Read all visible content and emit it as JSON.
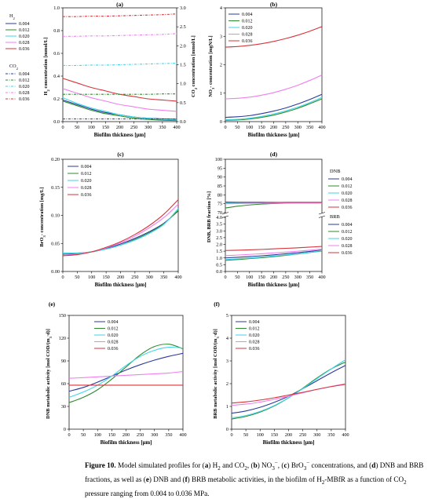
{
  "caption": {
    "fig_label": "Figure 10.",
    "segments": [
      {
        "t": "Model simulated profiles for (",
        "b": false
      },
      {
        "t": "a",
        "b": true
      },
      {
        "t": ") H",
        "b": false
      },
      {
        "t": "2",
        "b": false,
        "sub": true
      },
      {
        "t": " and CO",
        "b": false
      },
      {
        "t": "2",
        "b": false,
        "sub": true
      },
      {
        "t": ", (",
        "b": false
      },
      {
        "t": "b",
        "b": true
      },
      {
        "t": ") NO",
        "b": false
      },
      {
        "t": "3",
        "b": false,
        "sub": true
      },
      {
        "t": "−",
        "b": false,
        "sup": true
      },
      {
        "t": ", (",
        "b": false
      },
      {
        "t": "c",
        "b": true
      },
      {
        "t": ") BrO",
        "b": false
      },
      {
        "t": "3",
        "b": false,
        "sub": true
      },
      {
        "t": "−",
        "b": false,
        "sup": true
      },
      {
        "t": " concentrations, and (",
        "b": false
      },
      {
        "t": "d",
        "b": true
      },
      {
        "t": ") DNB and BRB fractions, as well as (",
        "b": false
      },
      {
        "t": "e",
        "b": true
      },
      {
        "t": ") DNB and (",
        "b": false
      },
      {
        "t": "f",
        "b": true
      },
      {
        "t": ") BRB metabolic activities, in the biofilm of H",
        "b": false
      },
      {
        "t": "2",
        "b": false,
        "sub": true
      },
      {
        "t": "-MBfR as a function of CO",
        "b": false
      },
      {
        "t": "2",
        "b": false,
        "sub": true
      },
      {
        "t": " pressure ranging from 0.004 to 0.036 MPa.",
        "b": false
      }
    ]
  },
  "colors": {
    "0.004": "#2b3a9c",
    "0.012": "#2e8b2e",
    "0.020": "#3fd6e6",
    "0.028": "#f07ef0",
    "0.036": "#d6343a"
  },
  "chart_data": [
    {
      "id": "a",
      "panel_label": "(a)",
      "type": "line",
      "xlabel": "Biofilm thickness [μm]",
      "ylabel": "H2 concentration [mmol/L]",
      "ylabel_right": "CO2 concentration [mmol/L]",
      "xlim": [
        0,
        400
      ],
      "ylim": [
        0,
        1.0
      ],
      "ylim_right": [
        0,
        3.0
      ],
      "x_ticks": [
        0,
        50,
        100,
        150,
        200,
        250,
        300,
        350,
        400
      ],
      "y_ticks": [
        "0.0",
        "0.2",
        "0.4",
        "0.6",
        "0.8",
        "1.0"
      ],
      "y_ticks_right": [
        "0.0",
        "0.5",
        "1.0",
        "1.5",
        "2.0",
        "2.5",
        "3.0"
      ],
      "legend_groups": [
        {
          "title": "H2",
          "style": "solid"
        },
        {
          "title": "CO2",
          "style": "dashdot"
        }
      ],
      "legend_labels": [
        "0.004",
        "0.012",
        "0.020",
        "0.028",
        "0.036"
      ],
      "x": [
        0,
        50,
        100,
        150,
        200,
        250,
        300,
        350,
        400
      ],
      "series": [
        {
          "name": "H2 0.004",
          "key": "0.004",
          "axis": "left",
          "style": "solid",
          "values": [
            0.19,
            0.15,
            0.11,
            0.08,
            0.06,
            0.04,
            0.03,
            0.025,
            0.02
          ]
        },
        {
          "name": "H2 0.012",
          "key": "0.012",
          "axis": "left",
          "style": "solid",
          "values": [
            0.18,
            0.14,
            0.1,
            0.07,
            0.05,
            0.03,
            0.02,
            0.012,
            0.01
          ]
        },
        {
          "name": "H2 0.020",
          "key": "0.020",
          "axis": "left",
          "style": "solid",
          "values": [
            0.21,
            0.16,
            0.12,
            0.09,
            0.06,
            0.04,
            0.03,
            0.02,
            0.015
          ]
        },
        {
          "name": "H2 0.028",
          "key": "0.028",
          "axis": "left",
          "style": "solid",
          "values": [
            0.29,
            0.25,
            0.21,
            0.18,
            0.15,
            0.13,
            0.11,
            0.1,
            0.09
          ]
        },
        {
          "name": "H2 0.036",
          "key": "0.036",
          "axis": "left",
          "style": "solid",
          "values": [
            0.38,
            0.34,
            0.3,
            0.27,
            0.24,
            0.22,
            0.2,
            0.19,
            0.18
          ]
        },
        {
          "name": "CO2 0.004",
          "key": "0.004",
          "axis": "right",
          "style": "dashdot",
          "values": [
            0.07,
            0.07,
            0.07,
            0.07,
            0.07,
            0.07,
            0.07,
            0.07,
            0.07
          ]
        },
        {
          "name": "CO2 0.012",
          "key": "0.012",
          "axis": "right",
          "style": "dashdot",
          "values": [
            0.72,
            0.72,
            0.72,
            0.72,
            0.72,
            0.72,
            0.72,
            0.73,
            0.73
          ]
        },
        {
          "name": "CO2 0.020",
          "key": "0.020",
          "axis": "right",
          "style": "dashdot",
          "values": [
            1.48,
            1.48,
            1.49,
            1.49,
            1.5,
            1.51,
            1.52,
            1.53,
            1.54
          ]
        },
        {
          "name": "CO2 0.028",
          "key": "0.028",
          "axis": "right",
          "style": "dashdot",
          "values": [
            2.25,
            2.25,
            2.26,
            2.26,
            2.27,
            2.28,
            2.29,
            2.3,
            2.32
          ]
        },
        {
          "name": "CO2 0.036",
          "key": "0.036",
          "axis": "right",
          "style": "dashdot",
          "values": [
            2.77,
            2.77,
            2.78,
            2.78,
            2.79,
            2.8,
            2.81,
            2.82,
            2.84
          ]
        }
      ]
    },
    {
      "id": "b",
      "panel_label": "(b)",
      "type": "line",
      "xlabel": "Biofilm thickness [μm]",
      "ylabel": "NO3- concentration [mgN/L]",
      "xlim": [
        0,
        400
      ],
      "ylim": [
        0,
        4
      ],
      "x_ticks": [
        0,
        50,
        100,
        150,
        200,
        250,
        300,
        350,
        400
      ],
      "y_ticks": [
        "0",
        "1",
        "2",
        "3",
        "4"
      ],
      "legend_labels": [
        "0.004",
        "0.012",
        "0.020",
        "0.028",
        "0.036"
      ],
      "x": [
        0,
        50,
        100,
        150,
        200,
        250,
        300,
        350,
        400
      ],
      "series": [
        {
          "key": "0.004",
          "values": [
            0.15,
            0.17,
            0.21,
            0.28,
            0.37,
            0.48,
            0.62,
            0.78,
            0.96
          ]
        },
        {
          "key": "0.012",
          "values": [
            0.05,
            0.06,
            0.09,
            0.15,
            0.23,
            0.34,
            0.47,
            0.63,
            0.8
          ]
        },
        {
          "key": "0.020",
          "values": [
            0.07,
            0.08,
            0.12,
            0.18,
            0.27,
            0.38,
            0.51,
            0.67,
            0.85
          ]
        },
        {
          "key": "0.028",
          "values": [
            0.8,
            0.82,
            0.86,
            0.93,
            1.02,
            1.14,
            1.28,
            1.45,
            1.64
          ]
        },
        {
          "key": "0.036",
          "values": [
            2.62,
            2.64,
            2.68,
            2.74,
            2.82,
            2.92,
            3.04,
            3.18,
            3.34
          ]
        }
      ]
    },
    {
      "id": "c",
      "panel_label": "(c)",
      "type": "line",
      "xlabel": "Biofilm thickness [μm]",
      "ylabel": "BrO3- concentration [mg/L]",
      "xlim": [
        0,
        400
      ],
      "ylim": [
        0,
        0.2
      ],
      "x_ticks": [
        0,
        50,
        100,
        150,
        200,
        250,
        300,
        350,
        400
      ],
      "y_ticks": [
        "0.00",
        "0.05",
        "0.10",
        "0.15",
        "0.20"
      ],
      "legend_labels": [
        "0.004",
        "0.012",
        "0.020",
        "0.028",
        "0.036"
      ],
      "x": [
        0,
        50,
        100,
        150,
        200,
        250,
        300,
        350,
        400
      ],
      "series": [
        {
          "key": "0.004",
          "values": [
            0.029,
            0.031,
            0.035,
            0.041,
            0.049,
            0.059,
            0.071,
            0.086,
            0.108
          ]
        },
        {
          "key": "0.012",
          "values": [
            0.031,
            0.032,
            0.035,
            0.04,
            0.047,
            0.057,
            0.069,
            0.085,
            0.109
          ]
        },
        {
          "key": "0.020",
          "values": [
            0.033,
            0.033,
            0.035,
            0.04,
            0.047,
            0.056,
            0.068,
            0.084,
            0.112
          ]
        },
        {
          "key": "0.028",
          "values": [
            0.029,
            0.031,
            0.035,
            0.042,
            0.051,
            0.063,
            0.078,
            0.096,
            0.12
          ]
        },
        {
          "key": "0.036",
          "values": [
            0.028,
            0.03,
            0.035,
            0.043,
            0.053,
            0.066,
            0.082,
            0.102,
            0.128
          ]
        }
      ]
    },
    {
      "id": "d",
      "panel_label": "(d)",
      "type": "line",
      "xlabel": "Biofilm thickness [μm]",
      "ylabel": "DNB, BRB fraction [%]",
      "xlim": [
        0,
        400
      ],
      "x_ticks": [
        0,
        50,
        100,
        150,
        200,
        250,
        300,
        350,
        400
      ],
      "upper_range": [
        70,
        100
      ],
      "upper_ticks": [
        "70",
        "75",
        "80",
        "85",
        "90",
        "95",
        "100"
      ],
      "lower_range": [
        0,
        4.0
      ],
      "lower_ticks": [
        "0.0",
        "0.5",
        "1.0",
        "1.5",
        "2.0",
        "2.5",
        "3.0",
        "3.5",
        "4.0"
      ],
      "legend_groups": [
        {
          "title": "DNB"
        },
        {
          "title": "BRB"
        }
      ],
      "legend_labels": [
        "0.004",
        "0.012",
        "0.020",
        "0.028",
        "0.036"
      ],
      "x": [
        0,
        50,
        100,
        150,
        200,
        250,
        300,
        350,
        400
      ],
      "dnb_series": [
        {
          "key": "0.004",
          "values": [
            75.6,
            75.6,
            75.6,
            75.6,
            75.6,
            75.6,
            75.6,
            75.6,
            75.6
          ]
        },
        {
          "key": "0.012",
          "values": [
            72.6,
            73.6,
            74.3,
            74.8,
            75.1,
            75.3,
            75.4,
            75.4,
            75.5
          ]
        },
        {
          "key": "0.020",
          "values": [
            75.4,
            75.4,
            75.4,
            75.4,
            75.4,
            75.5,
            75.5,
            75.5,
            75.5
          ]
        },
        {
          "key": "0.028",
          "values": [
            75.0,
            75.1,
            75.2,
            75.3,
            75.3,
            75.4,
            75.4,
            75.4,
            75.5
          ]
        },
        {
          "key": "0.036",
          "values": [
            76.0,
            75.9,
            75.9,
            75.9,
            75.8,
            75.8,
            75.8,
            75.8,
            75.8
          ]
        }
      ],
      "brb_series": [
        {
          "key": "0.004",
          "values": [
            1.0,
            1.05,
            1.1,
            1.16,
            1.23,
            1.31,
            1.39,
            1.48,
            1.58
          ]
        },
        {
          "key": "0.012",
          "values": [
            0.82,
            0.88,
            0.95,
            1.02,
            1.1,
            1.19,
            1.29,
            1.4,
            1.52
          ]
        },
        {
          "key": "0.020",
          "values": [
            0.88,
            0.93,
            0.99,
            1.06,
            1.14,
            1.22,
            1.31,
            1.41,
            1.55
          ]
        },
        {
          "key": "0.028",
          "values": [
            1.17,
            1.21,
            1.26,
            1.31,
            1.37,
            1.43,
            1.5,
            1.57,
            1.65
          ]
        },
        {
          "key": "0.036",
          "values": [
            1.55,
            1.57,
            1.6,
            1.63,
            1.67,
            1.71,
            1.75,
            1.8,
            1.85
          ]
        }
      ]
    },
    {
      "id": "e",
      "panel_label": "(e)",
      "type": "line",
      "xlabel": "Biofilm thickness [μm]",
      "ylabel": "DNB metabolic activity [mol COD/(m3·d)]",
      "xlim": [
        0,
        400
      ],
      "ylim": [
        0,
        150
      ],
      "x_ticks": [
        0,
        50,
        100,
        150,
        200,
        250,
        300,
        350,
        400
      ],
      "y_ticks": [
        "0",
        "30",
        "60",
        "90",
        "120",
        "150"
      ],
      "legend_labels": [
        "0.004",
        "0.012",
        "0.020",
        "0.028",
        "0.036"
      ],
      "x": [
        0,
        50,
        100,
        150,
        200,
        250,
        300,
        350,
        400
      ],
      "series": [
        {
          "key": "0.004",
          "values": [
            50,
            55,
            62,
            70,
            78,
            85,
            91,
            96,
            100
          ]
        },
        {
          "key": "0.012",
          "values": [
            35,
            42,
            52,
            66,
            82,
            98,
            109,
            112,
            106
          ]
        },
        {
          "key": "0.020",
          "values": [
            42,
            49,
            58,
            70,
            84,
            96,
            104,
            108,
            107
          ]
        },
        {
          "key": "0.028",
          "values": [
            67,
            68,
            69,
            70,
            71,
            72,
            73,
            74,
            76
          ]
        },
        {
          "key": "0.036",
          "values": [
            58,
            58,
            58,
            58,
            58,
            58,
            58,
            58,
            58
          ]
        }
      ]
    },
    {
      "id": "f",
      "panel_label": "(f)",
      "type": "line",
      "xlabel": "Biofilm thickness [μm]",
      "ylabel": "BRB metabolic activity [mol COD/(m3·d)]",
      "xlim": [
        0,
        400
      ],
      "ylim": [
        0,
        5
      ],
      "x_ticks": [
        0,
        50,
        100,
        150,
        200,
        250,
        300,
        350,
        400
      ],
      "y_ticks": [
        "0",
        "1",
        "2",
        "3",
        "4",
        "5"
      ],
      "legend_labels": [
        "0.004",
        "0.012",
        "0.020",
        "0.028",
        "0.036"
      ],
      "x": [
        0,
        50,
        100,
        150,
        200,
        250,
        300,
        350,
        400
      ],
      "series": [
        {
          "key": "0.004",
          "values": [
            0.7,
            0.8,
            0.96,
            1.18,
            1.45,
            1.78,
            2.13,
            2.48,
            2.8
          ]
        },
        {
          "key": "0.012",
          "values": [
            0.45,
            0.56,
            0.75,
            1.02,
            1.38,
            1.8,
            2.25,
            2.65,
            2.95
          ]
        },
        {
          "key": "0.020",
          "values": [
            0.5,
            0.6,
            0.78,
            1.04,
            1.38,
            1.78,
            2.22,
            2.65,
            3.05
          ]
        },
        {
          "key": "0.028",
          "values": [
            1.05,
            1.1,
            1.19,
            1.31,
            1.45,
            1.6,
            1.75,
            1.88,
            2.0
          ]
        },
        {
          "key": "0.036",
          "values": [
            1.15,
            1.2,
            1.28,
            1.38,
            1.5,
            1.62,
            1.75,
            1.87,
            1.97
          ]
        }
      ]
    }
  ]
}
